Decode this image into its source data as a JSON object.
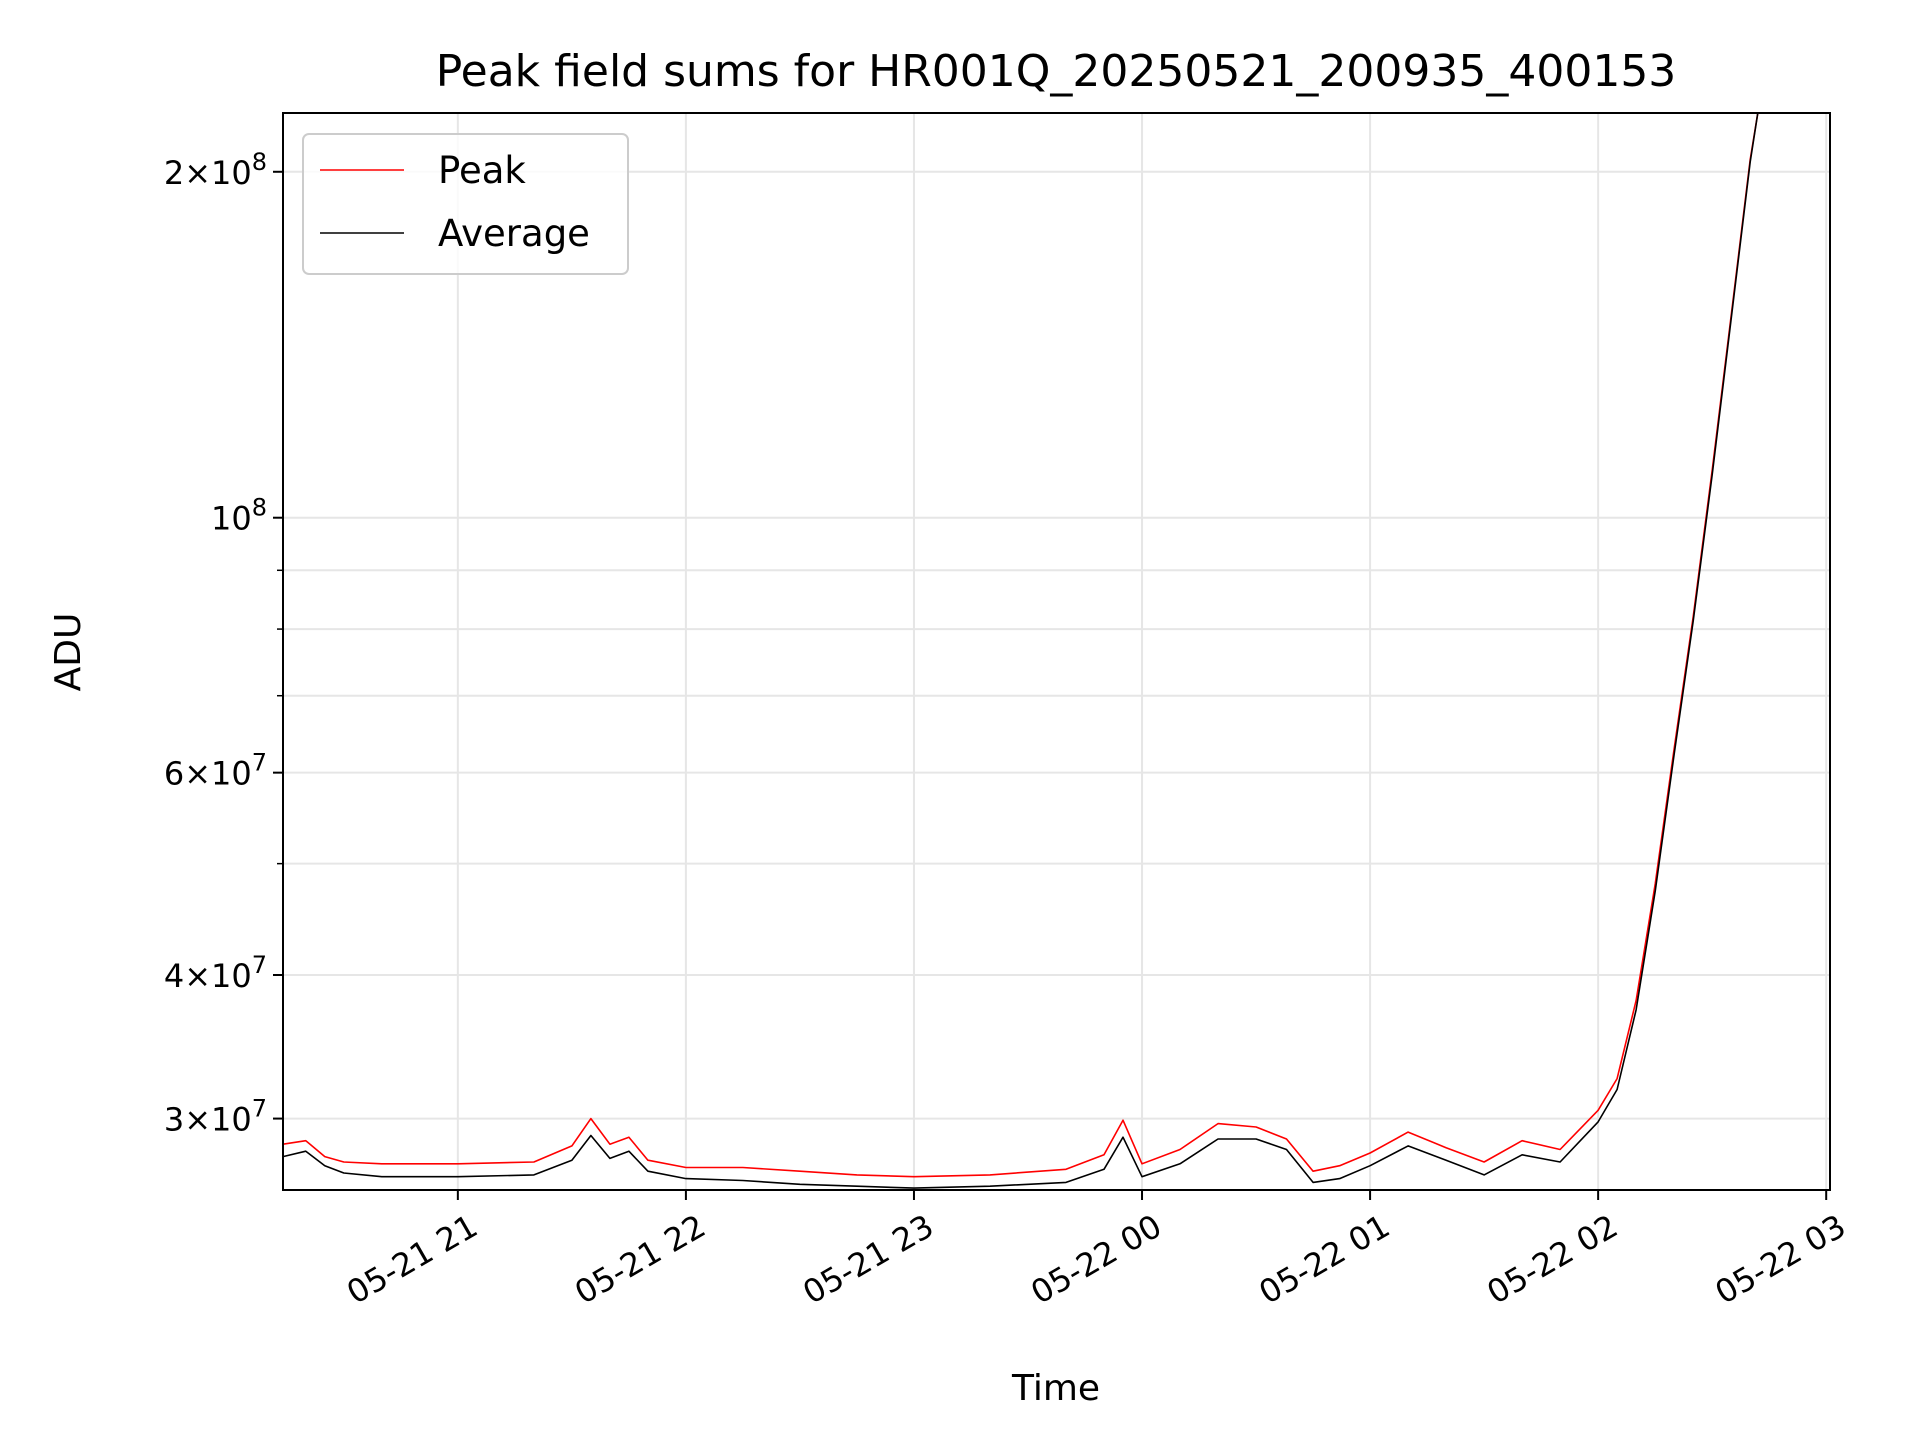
{
  "colors": {
    "peak": "#ff0000",
    "average": "#000000",
    "grid": "#e6e6e6",
    "legend_border": "#cccccc"
  },
  "chart_data": {
    "type": "line",
    "title": "Peak field sums for HR001Q_20250521_200935_400153",
    "xlabel": "Time",
    "ylabel": "ADU",
    "yscale": "log",
    "grid": true,
    "legend": "top-left",
    "xlim": [
      "2025-05-21 20:14",
      "2025-05-22 03:01"
    ],
    "ylim": [
      26000000,
      225000000
    ],
    "x_ticks": [
      "05-21 21",
      "05-21 22",
      "05-21 23",
      "05-22 00",
      "05-22 01",
      "05-22 02",
      "05-22 03"
    ],
    "y_ticks_major": [
      {
        "value": 30000000,
        "mantissa": "3",
        "exp": "7"
      },
      {
        "value": 40000000,
        "mantissa": "4",
        "exp": "7"
      },
      {
        "value": 60000000,
        "mantissa": "6",
        "exp": "7"
      },
      {
        "value": 100000000,
        "mantissa": "",
        "exp": "8"
      },
      {
        "value": 200000000,
        "mantissa": "2",
        "exp": "8"
      }
    ],
    "y_ticks_minor": [
      50000000,
      70000000,
      80000000,
      90000000
    ],
    "series": [
      {
        "name": "Peak",
        "x": [
          "2025-05-21 20:14",
          "2025-05-21 20:20",
          "2025-05-21 20:25",
          "2025-05-21 20:30",
          "2025-05-21 20:40",
          "2025-05-21 21:00",
          "2025-05-21 21:20",
          "2025-05-21 21:30",
          "2025-05-21 21:35",
          "2025-05-21 21:40",
          "2025-05-21 21:45",
          "2025-05-21 21:50",
          "2025-05-21 22:00",
          "2025-05-21 22:15",
          "2025-05-21 22:30",
          "2025-05-21 22:45",
          "2025-05-21 23:00",
          "2025-05-21 23:20",
          "2025-05-21 23:40",
          "2025-05-21 23:50",
          "2025-05-21 23:55",
          "2025-05-22 00:00",
          "2025-05-22 00:10",
          "2025-05-22 00:20",
          "2025-05-22 00:30",
          "2025-05-22 00:38",
          "2025-05-22 00:45",
          "2025-05-22 00:52",
          "2025-05-22 01:00",
          "2025-05-22 01:10",
          "2025-05-22 01:20",
          "2025-05-22 01:30",
          "2025-05-22 01:40",
          "2025-05-22 01:50",
          "2025-05-22 02:00",
          "2025-05-22 02:05",
          "2025-05-22 02:10",
          "2025-05-22 02:15",
          "2025-05-22 02:20",
          "2025-05-22 02:25",
          "2025-05-22 02:30",
          "2025-05-22 02:35",
          "2025-05-22 02:40",
          "2025-05-22 02:42"
        ],
        "y": [
          28500000,
          28700000,
          27800000,
          27500000,
          27400000,
          27400000,
          27500000,
          28400000,
          30000000,
          28500000,
          28900000,
          27600000,
          27200000,
          27200000,
          27000000,
          26800000,
          26700000,
          26800000,
          27100000,
          27900000,
          29900000,
          27400000,
          28200000,
          29700000,
          29500000,
          28800000,
          27000000,
          27300000,
          28000000,
          29200000,
          28300000,
          27500000,
          28700000,
          28200000,
          30500000,
          32500000,
          38000000,
          48000000,
          63000000,
          82000000,
          110000000,
          150000000,
          205000000,
          225000000
        ]
      },
      {
        "name": "Average",
        "x": [
          "2025-05-21 20:14",
          "2025-05-21 20:20",
          "2025-05-21 20:25",
          "2025-05-21 20:30",
          "2025-05-21 20:40",
          "2025-05-21 21:00",
          "2025-05-21 21:20",
          "2025-05-21 21:30",
          "2025-05-21 21:35",
          "2025-05-21 21:40",
          "2025-05-21 21:45",
          "2025-05-21 21:50",
          "2025-05-21 22:00",
          "2025-05-21 22:15",
          "2025-05-21 22:30",
          "2025-05-21 22:45",
          "2025-05-21 23:00",
          "2025-05-21 23:20",
          "2025-05-21 23:40",
          "2025-05-21 23:50",
          "2025-05-21 23:55",
          "2025-05-22 00:00",
          "2025-05-22 00:10",
          "2025-05-22 00:20",
          "2025-05-22 00:30",
          "2025-05-22 00:38",
          "2025-05-22 00:45",
          "2025-05-22 00:52",
          "2025-05-22 01:00",
          "2025-05-22 01:10",
          "2025-05-22 01:20",
          "2025-05-22 01:30",
          "2025-05-22 01:40",
          "2025-05-22 01:50",
          "2025-05-22 02:00",
          "2025-05-22 02:05",
          "2025-05-22 02:10",
          "2025-05-22 02:15",
          "2025-05-22 02:20",
          "2025-05-22 02:25",
          "2025-05-22 02:30",
          "2025-05-22 02:35",
          "2025-05-22 02:40",
          "2025-05-22 02:42"
        ],
        "y": [
          27800000,
          28100000,
          27300000,
          26900000,
          26700000,
          26700000,
          26800000,
          27600000,
          29000000,
          27700000,
          28100000,
          27000000,
          26600000,
          26500000,
          26300000,
          26200000,
          26100000,
          26200000,
          26400000,
          27100000,
          28900000,
          26700000,
          27400000,
          28800000,
          28800000,
          28200000,
          26400000,
          26600000,
          27300000,
          28400000,
          27600000,
          26800000,
          27900000,
          27500000,
          29800000,
          31800000,
          37300000,
          47300000,
          62300000,
          81300000,
          109000000,
          149000000,
          204000000,
          225000000
        ]
      }
    ]
  }
}
